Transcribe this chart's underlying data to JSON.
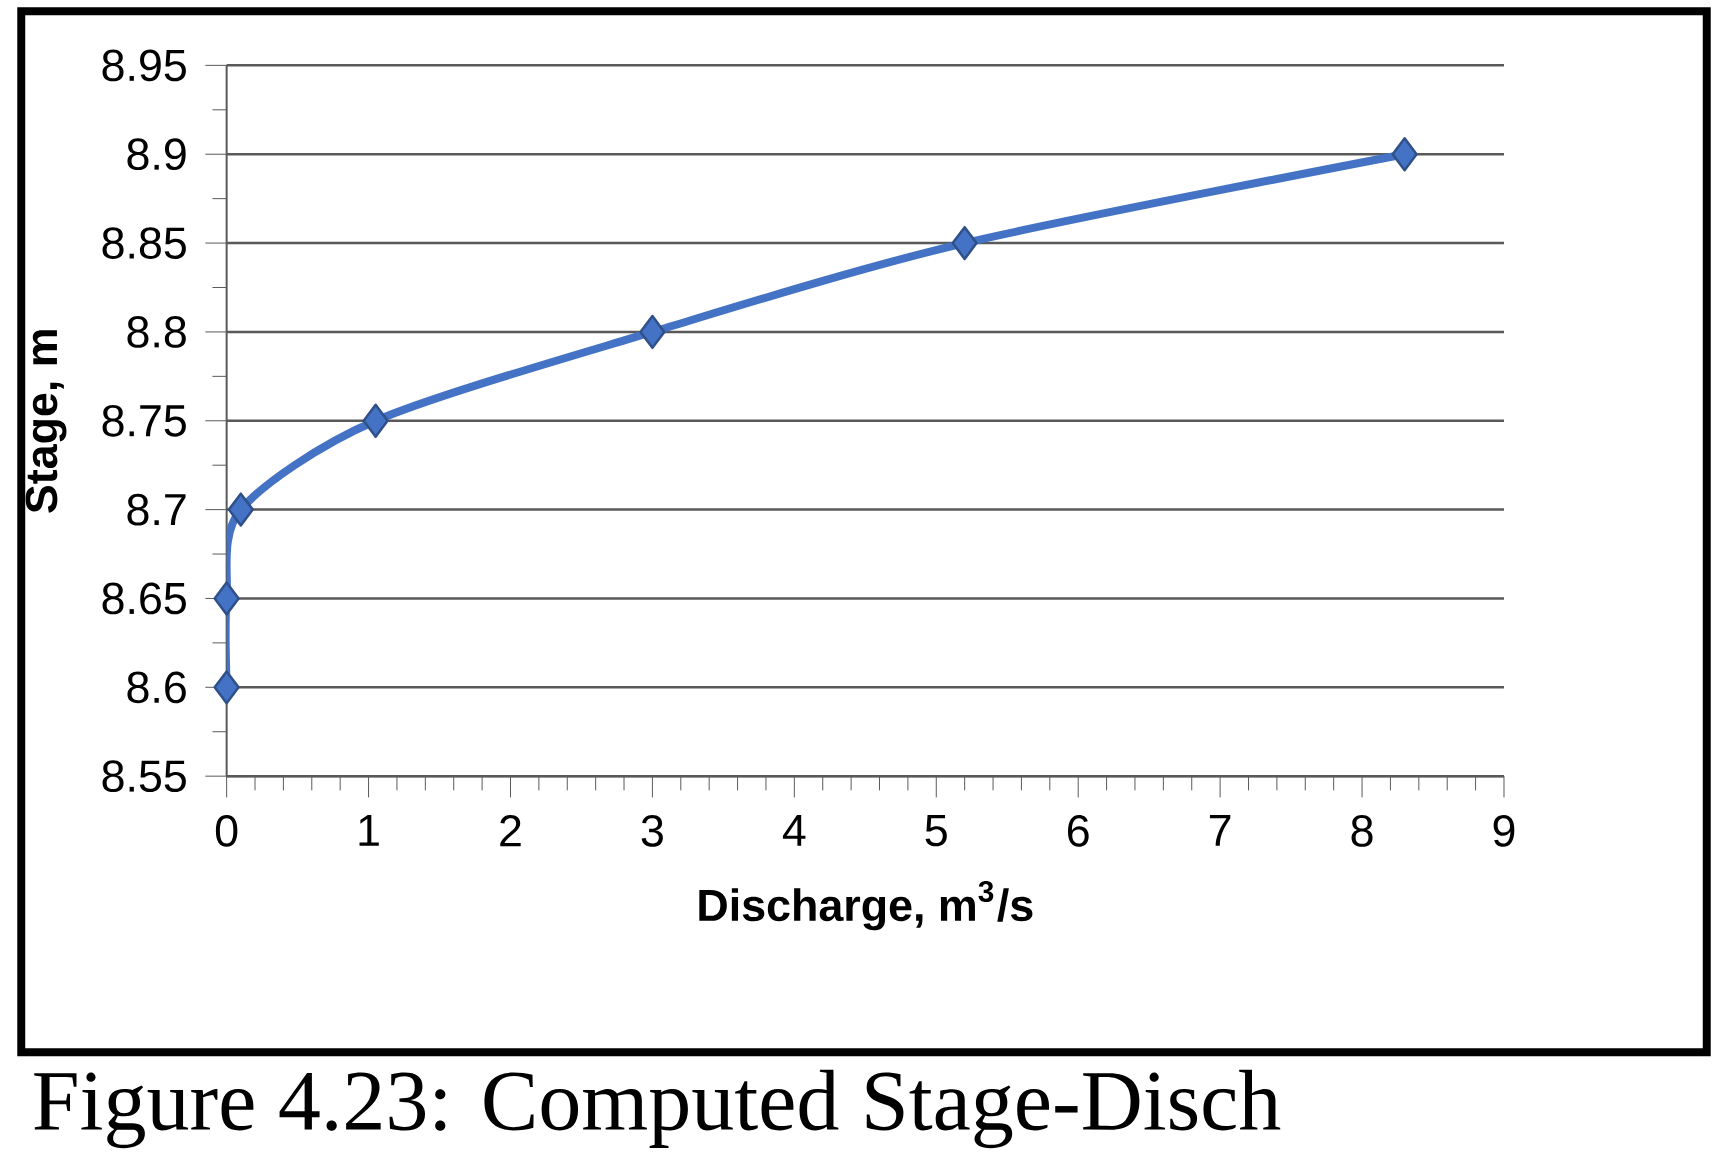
{
  "chart_data": {
    "type": "line",
    "xlabel": "Discharge, m$^{3}$/s",
    "ylabel": "Stage, m",
    "annotations": [
      "Figure 4.23: Computed Stage-Disch"
    ],
    "series": [
      {
        "color": "#4472c4",
        "x": [
          0,
          0,
          0.1,
          1.05,
          3.0,
          5.2,
          8.3
        ],
        "values": [
          8.6,
          8.65,
          8.7,
          8.75,
          8.8,
          8.85,
          8.9
        ]
      }
    ],
    "xlim": [
      0,
      9
    ],
    "xticks": [
      0,
      1,
      2,
      3,
      4,
      5,
      6,
      7,
      8,
      9
    ],
    "ylim": [
      8.55,
      8.95
    ],
    "yticks": [
      8.55,
      8.6,
      8.65,
      8.7,
      8.75,
      8.8,
      8.85,
      8.9,
      8.95
    ],
    "grid": "y",
    "marker": "diamond",
    "line_style": "solid"
  }
}
